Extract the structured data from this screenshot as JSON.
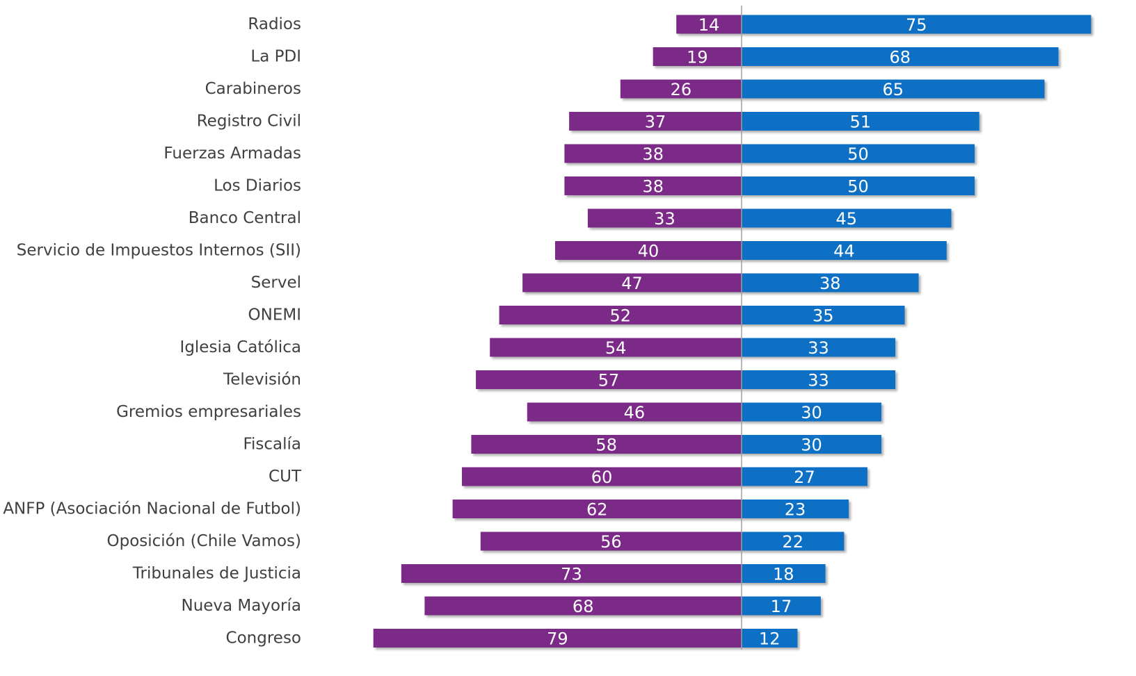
{
  "chart_data": {
    "type": "diverging-bar",
    "categories": [
      "Radios",
      "La PDI",
      "Carabineros",
      "Registro Civil",
      "Fuerzas Armadas",
      "Los Diarios",
      "Banco Central",
      "Servicio de Impuestos Internos (SII)",
      "Servel",
      "ONEMI",
      "Iglesia Católica",
      "Televisión",
      "Gremios empresariales",
      "Fiscalía",
      "CUT",
      "ANFP (Asociación Nacional de Futbol)",
      "Oposición (Chile Vamos)",
      "Tribunales de Justicia",
      "Nueva Mayoría",
      "Congreso"
    ],
    "series": [
      {
        "color": "#7b2a88",
        "values": [
          14,
          19,
          26,
          37,
          38,
          38,
          33,
          40,
          47,
          52,
          54,
          57,
          46,
          58,
          60,
          62,
          56,
          73,
          68,
          79
        ]
      },
      {
        "color": "#0a70c4",
        "values": [
          75,
          68,
          65,
          51,
          50,
          50,
          45,
          44,
          38,
          35,
          33,
          33,
          30,
          30,
          27,
          23,
          22,
          18,
          17,
          12
        ]
      }
    ]
  }
}
